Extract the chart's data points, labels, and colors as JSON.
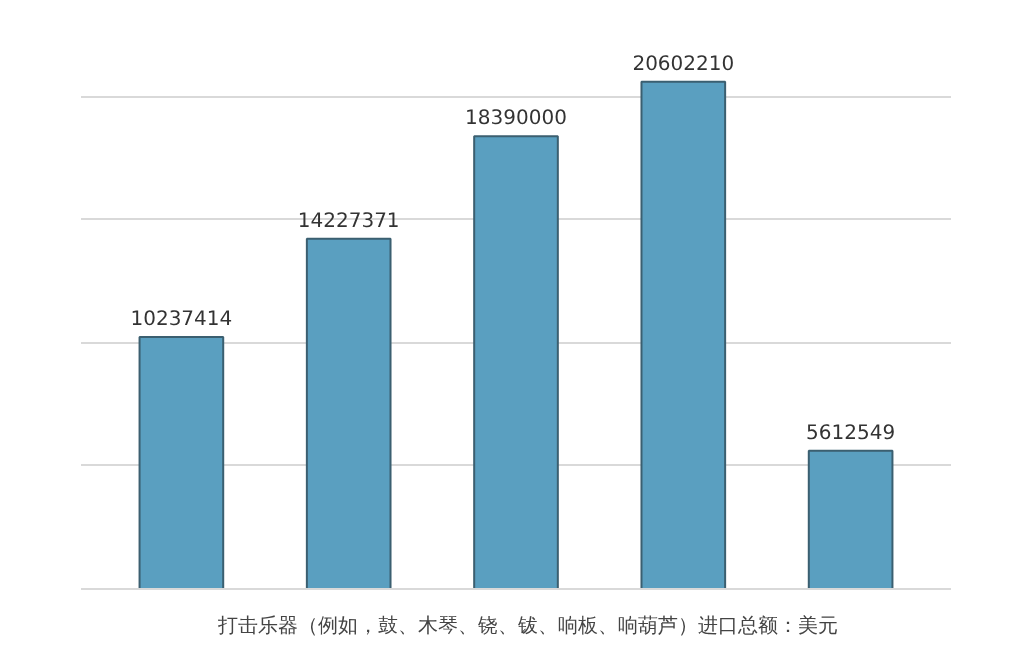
{
  "chart_data": {
    "type": "bar",
    "categories": [
      null,
      null,
      null,
      null,
      null
    ],
    "series": [
      {
        "name": "打击乐器（例如，鼓、木琴、铙、钹、响板、响葫芦）进口总额：美元",
        "color": "#5a9fc0",
        "values": [
          10237414,
          14227371,
          18390000,
          20602210,
          5612549
        ]
      }
    ],
    "tick_labels": false,
    "grid": "y",
    "legend": "bottom",
    "data_labels": true
  }
}
